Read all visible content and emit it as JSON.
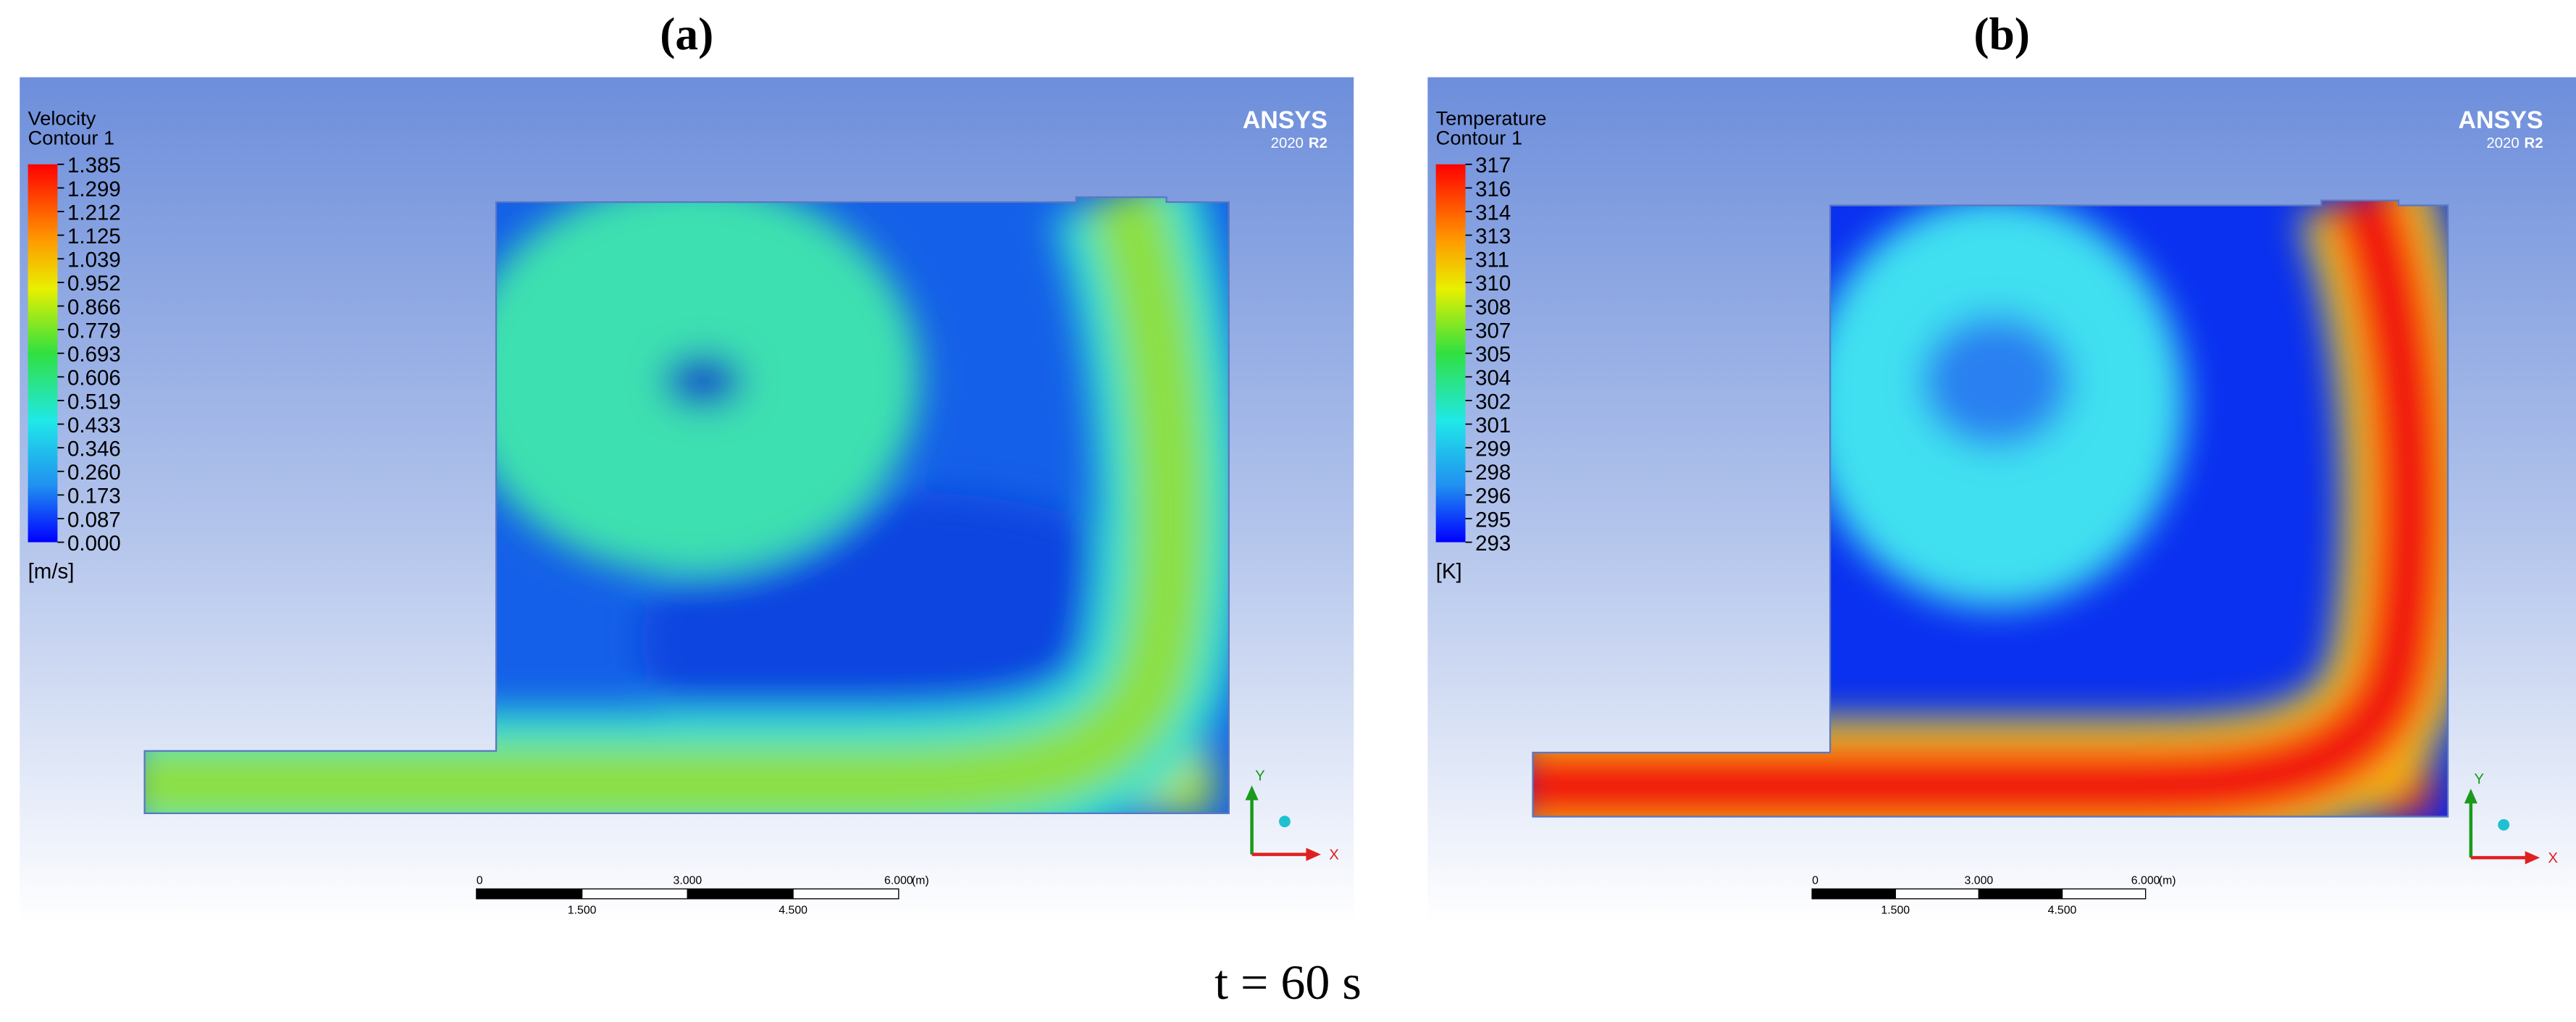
{
  "panels": [
    {
      "label": "(a)",
      "title": "Velocity",
      "subtitle": "Contour 1",
      "legend_ticks": [
        "1.385",
        "1.299",
        "1.212",
        "1.125",
        "1.039",
        "0.952",
        "0.866",
        "0.779",
        "0.693",
        "0.606",
        "0.519",
        "0.433",
        "0.346",
        "0.260",
        "0.173",
        "0.087",
        "0.000"
      ],
      "unit": "[m/s]",
      "logo": "ANSYS",
      "version": "2020",
      "release": "R2",
      "scale_bar": {
        "top": [
          "0",
          "3.000",
          "6.000"
        ],
        "unit": "(m)",
        "bottom": [
          "1.500",
          "4.500"
        ]
      },
      "axes": [
        "Y",
        "X"
      ]
    },
    {
      "label": "(b)",
      "title": "Temperature",
      "subtitle": "Contour 1",
      "legend_ticks": [
        "317",
        "316",
        "314",
        "313",
        "311",
        "310",
        "308",
        "307",
        "305",
        "304",
        "302",
        "301",
        "299",
        "298",
        "296",
        "295",
        "293"
      ],
      "unit": "[K]",
      "logo": "ANSYS",
      "version": "2020",
      "release": "R2",
      "scale_bar": {
        "top": [
          "0",
          "3.000",
          "6.000"
        ],
        "unit": "(m)",
        "bottom": [
          "1.500",
          "4.500"
        ]
      },
      "axes": [
        "Y",
        "X"
      ]
    }
  ],
  "caption": "t = 60 s"
}
